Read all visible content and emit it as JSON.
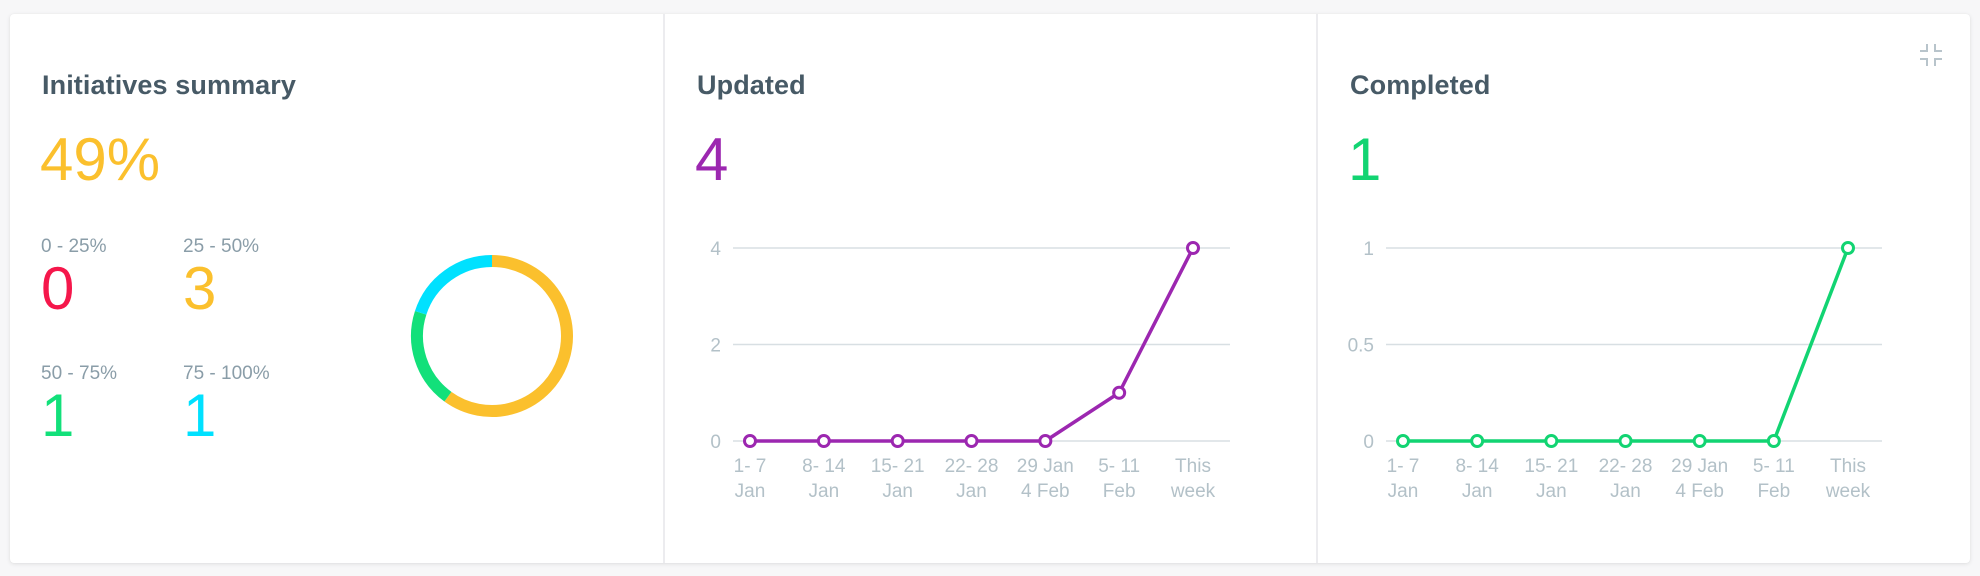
{
  "summary": {
    "title": "Initiatives summary",
    "percent": "49%",
    "percent_color": "#fbc02d",
    "ranges": [
      {
        "label": "0 - 25%",
        "value": "0",
        "color": "#f5174b"
      },
      {
        "label": "25 - 50%",
        "value": "3",
        "color": "#fbc02d"
      },
      {
        "label": "50 - 75%",
        "value": "1",
        "color": "#12e07a"
      },
      {
        "label": "75 - 100%",
        "value": "1",
        "color": "#00e1ff"
      }
    ]
  },
  "updated": {
    "title": "Updated",
    "value": "4",
    "color": "#9c27b0"
  },
  "completed": {
    "title": "Completed",
    "value": "1",
    "color": "#12d472"
  },
  "toolbar": {
    "collapse_icon": "collapse-icon"
  },
  "chart_data": [
    {
      "type": "pie",
      "title": "Initiatives summary",
      "donut": true,
      "categories": [
        "0 - 25%",
        "25 - 50%",
        "50 - 75%",
        "75 - 100%"
      ],
      "values": [
        0,
        3,
        1,
        1
      ],
      "colors": [
        "#f5174b",
        "#fbc02d",
        "#12e07a",
        "#00e1ff"
      ],
      "center_label": "49%"
    },
    {
      "type": "line",
      "title": "Updated",
      "categories": [
        [
          "1- 7",
          "Jan"
        ],
        [
          "8- 14",
          "Jan"
        ],
        [
          "15- 21",
          "Jan"
        ],
        [
          "22- 28",
          "Jan"
        ],
        [
          "29 Jan",
          "4 Feb"
        ],
        [
          "5- 11",
          "Feb"
        ],
        [
          "This",
          "week"
        ]
      ],
      "series": [
        {
          "name": "Updated",
          "values": [
            0,
            0,
            0,
            0,
            0,
            1,
            4
          ],
          "color": "#9c27b0"
        }
      ],
      "yticks": [
        "0",
        "2",
        "4"
      ],
      "ylim": [
        0,
        4
      ],
      "grid": true,
      "xlabel": "",
      "ylabel": ""
    },
    {
      "type": "line",
      "title": "Completed",
      "categories": [
        [
          "1- 7",
          "Jan"
        ],
        [
          "8- 14",
          "Jan"
        ],
        [
          "15- 21",
          "Jan"
        ],
        [
          "22- 28",
          "Jan"
        ],
        [
          "29 Jan",
          "4 Feb"
        ],
        [
          "5- 11",
          "Feb"
        ],
        [
          "This",
          "week"
        ]
      ],
      "series": [
        {
          "name": "Completed",
          "values": [
            0,
            0,
            0,
            0,
            0,
            0,
            1
          ],
          "color": "#12d472"
        }
      ],
      "yticks": [
        "0",
        "0.5",
        "1"
      ],
      "ylim": [
        0,
        1
      ],
      "grid": true,
      "xlabel": "",
      "ylabel": ""
    }
  ]
}
